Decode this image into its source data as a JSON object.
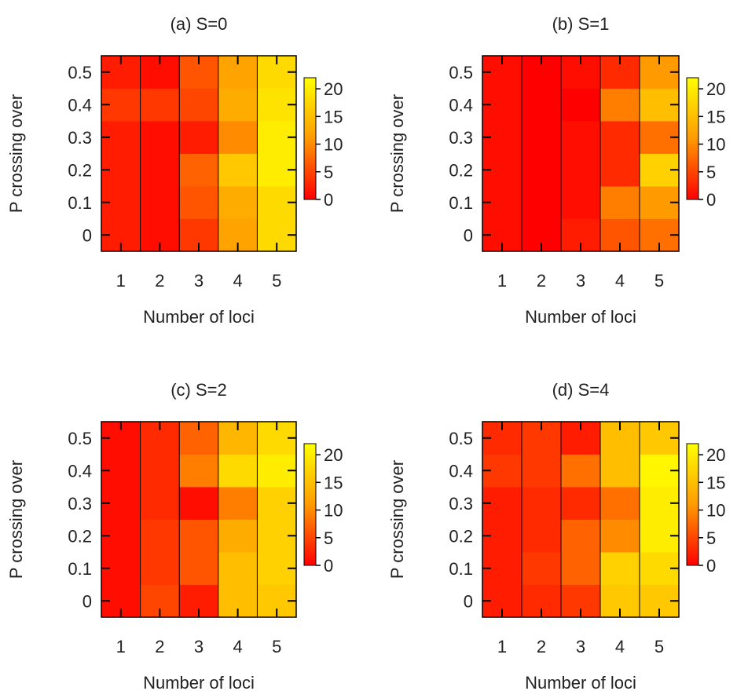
{
  "colors": {
    "low": "#ff0000",
    "mid": "#ff9a00",
    "high": "#ffff00",
    "edge": "#000000",
    "axis_text": "#222222"
  },
  "chart_data": [
    {
      "type": "heatmap",
      "title": "(a) S=0",
      "xlabel": "Number of loci",
      "ylabel": "P crossing over",
      "x": [
        1,
        2,
        3,
        4,
        5
      ],
      "y": [
        0,
        0.1,
        0.2,
        0.3,
        0.4,
        0.5
      ],
      "z": [
        [
          2,
          1,
          4,
          12,
          18
        ],
        [
          2,
          1,
          6,
          13,
          18
        ],
        [
          2,
          1,
          7,
          16,
          20
        ],
        [
          2,
          1,
          2,
          10,
          20
        ],
        [
          4,
          4,
          5,
          13,
          19
        ],
        [
          2,
          1,
          6,
          12,
          18
        ]
      ],
      "colorbar": {
        "ticks": [
          0,
          5,
          10,
          15,
          20
        ],
        "range": [
          0,
          22
        ]
      },
      "grid": false
    },
    {
      "type": "heatmap",
      "title": "(b) S=1",
      "xlabel": "Number of loci",
      "ylabel": "P crossing over",
      "x": [
        1,
        2,
        3,
        4,
        5
      ],
      "y": [
        0,
        0.1,
        0.2,
        0.3,
        0.4,
        0.5
      ],
      "z": [
        [
          1,
          0,
          2,
          6,
          8
        ],
        [
          1,
          0,
          1,
          9,
          11
        ],
        [
          1,
          0,
          1,
          3,
          17
        ],
        [
          1,
          0,
          1,
          3,
          8
        ],
        [
          1,
          0,
          0,
          9,
          15
        ],
        [
          1,
          0,
          1,
          3,
          11
        ]
      ],
      "colorbar": {
        "ticks": [
          0,
          5,
          10,
          15,
          20
        ],
        "range": [
          0,
          22
        ]
      },
      "grid": false
    },
    {
      "type": "heatmap",
      "title": "(c) S=2",
      "xlabel": "Number of loci",
      "ylabel": "P crossing over",
      "x": [
        1,
        2,
        3,
        4,
        5
      ],
      "y": [
        0,
        0.1,
        0.2,
        0.3,
        0.4,
        0.5
      ],
      "z": [
        [
          1,
          5,
          2,
          15,
          16
        ],
        [
          1,
          4,
          6,
          15,
          17
        ],
        [
          1,
          4,
          6,
          13,
          17
        ],
        [
          1,
          3,
          1,
          9,
          17
        ],
        [
          1,
          3,
          9,
          18,
          20
        ],
        [
          1,
          3,
          7,
          14,
          18
        ]
      ],
      "colorbar": {
        "ticks": [
          0,
          5,
          10,
          15,
          20
        ],
        "range": [
          0,
          22
        ]
      },
      "grid": false
    },
    {
      "type": "heatmap",
      "title": "(d) S=4",
      "xlabel": "Number of loci",
      "ylabel": "P crossing over",
      "x": [
        1,
        2,
        3,
        4,
        5
      ],
      "y": [
        0,
        0.1,
        0.2,
        0.3,
        0.4,
        0.5
      ],
      "z": [
        [
          2,
          3,
          4,
          16,
          16
        ],
        [
          2,
          4,
          7,
          17,
          18
        ],
        [
          2,
          3,
          7,
          10,
          20
        ],
        [
          2,
          3,
          3,
          8,
          20
        ],
        [
          4,
          4,
          8,
          15,
          21
        ],
        [
          3,
          4,
          2,
          15,
          16
        ]
      ],
      "colorbar": {
        "ticks": [
          0,
          5,
          10,
          15,
          20
        ],
        "range": [
          0,
          22
        ]
      },
      "grid": false
    }
  ]
}
